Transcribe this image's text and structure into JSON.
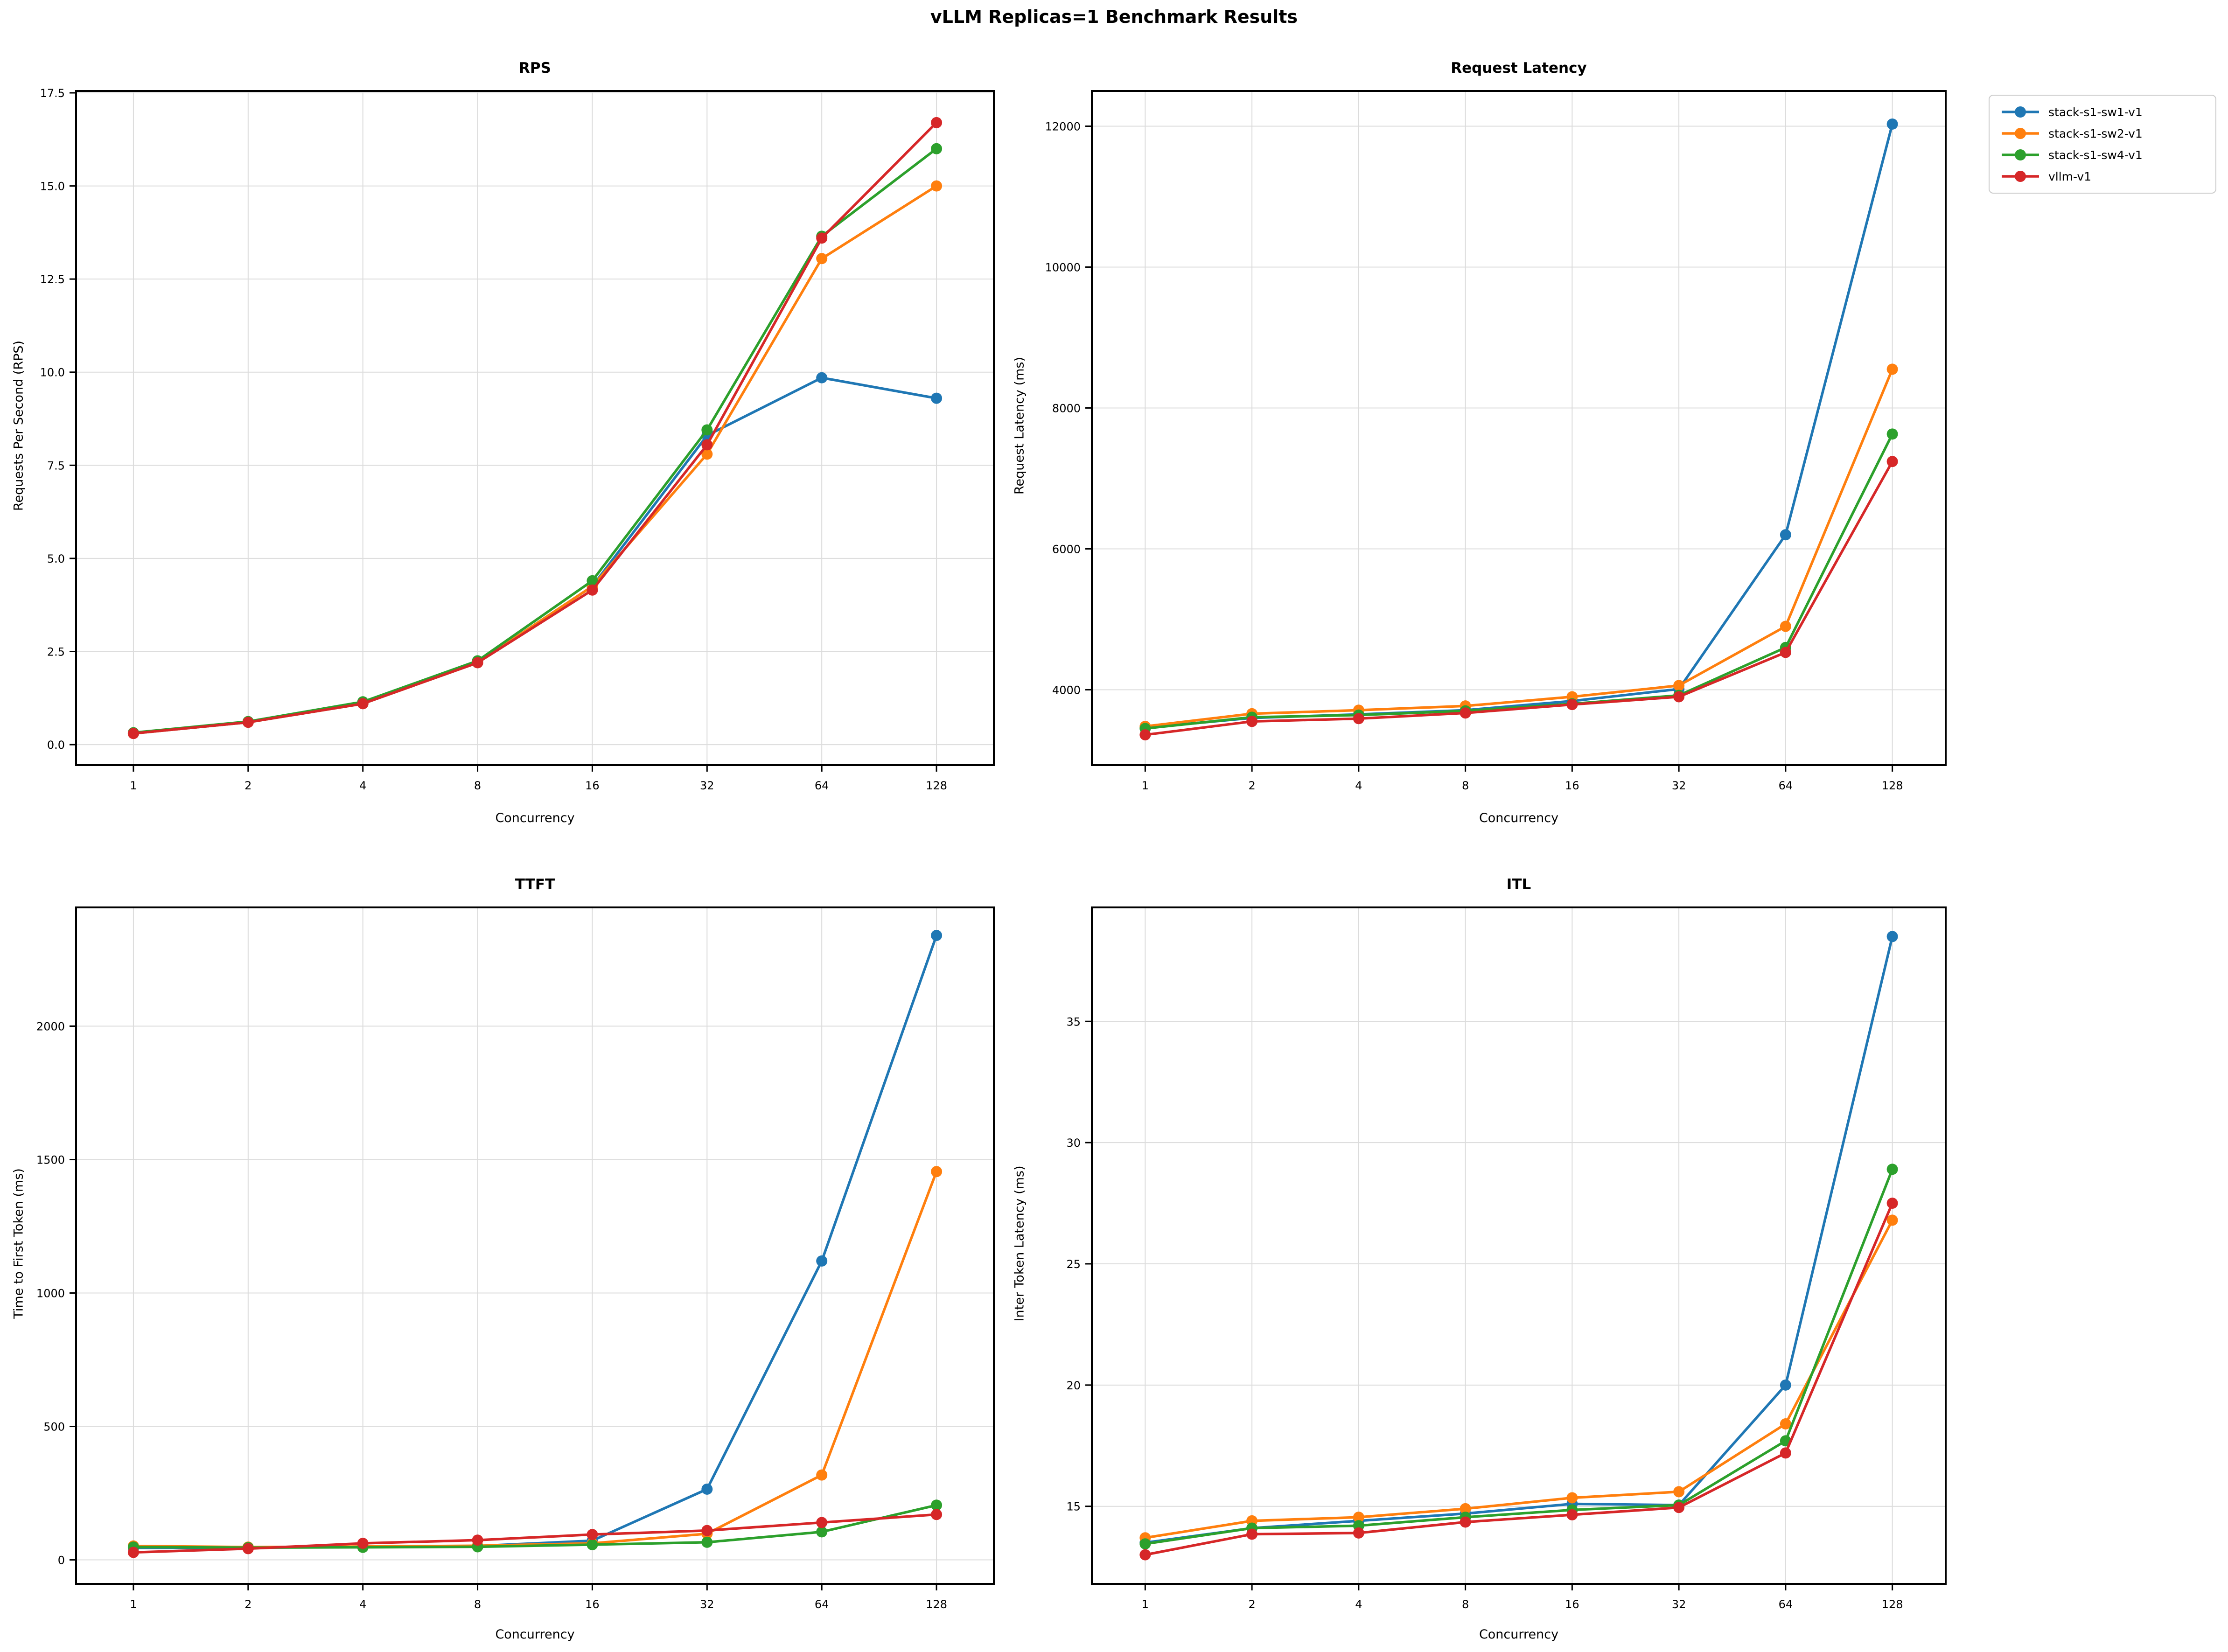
{
  "figure": {
    "suptitle": "vLLM Replicas=1 Benchmark Results"
  },
  "legend": {
    "items": [
      {
        "label": "stack-s1-sw1-v1",
        "color": "#1f77b4"
      },
      {
        "label": "stack-s1-sw2-v1",
        "color": "#ff7f0e"
      },
      {
        "label": "stack-s1-sw4-v1",
        "color": "#2ca02c"
      },
      {
        "label": "vllm-v1",
        "color": "#d62728"
      }
    ]
  },
  "chart_data": [
    {
      "type": "line",
      "title": "RPS",
      "xlabel": "Concurrency",
      "ylabel": "Requests Per Second (RPS)",
      "x": [
        1,
        2,
        4,
        8,
        16,
        32,
        64,
        128
      ],
      "xscale": "log2",
      "xlim_log2": [
        -0.5,
        7.5
      ],
      "ylim": [
        -0.55,
        17.55
      ],
      "yticks": [
        0.0,
        2.5,
        5.0,
        7.5,
        10.0,
        12.5,
        15.0,
        17.5
      ],
      "ytick_decimals": 1,
      "grid": true,
      "legend_position": "figure-upper-right",
      "series": [
        {
          "name": "stack-s1-sw1-v1",
          "color": "#1f77b4",
          "values": [
            0.3,
            0.6,
            1.1,
            2.2,
            4.25,
            8.3,
            9.85,
            9.3
          ]
        },
        {
          "name": "stack-s1-sw2-v1",
          "color": "#ff7f0e",
          "values": [
            0.3,
            0.6,
            1.1,
            2.2,
            4.25,
            7.8,
            13.05,
            15.0
          ]
        },
        {
          "name": "stack-s1-sw4-v1",
          "color": "#2ca02c",
          "values": [
            0.32,
            0.62,
            1.15,
            2.25,
            4.4,
            8.45,
            13.65,
            16.0
          ]
        },
        {
          "name": "vllm-v1",
          "color": "#d62728",
          "values": [
            0.3,
            0.6,
            1.1,
            2.2,
            4.15,
            8.05,
            13.6,
            16.7
          ]
        }
      ]
    },
    {
      "type": "line",
      "title": "Request Latency",
      "xlabel": "Concurrency",
      "ylabel": "Request Latency (ms)",
      "x": [
        1,
        2,
        4,
        8,
        16,
        32,
        64,
        128
      ],
      "xscale": "log2",
      "xlim_log2": [
        -0.5,
        7.5
      ],
      "ylim": [
        2930,
        12500
      ],
      "yticks": [
        4000,
        6000,
        8000,
        10000,
        12000
      ],
      "ytick_decimals": 0,
      "grid": true,
      "series": [
        {
          "name": "stack-s1-sw1-v1",
          "color": "#1f77b4",
          "values": [
            3460,
            3600,
            3650,
            3710,
            3840,
            4010,
            6200,
            12030
          ]
        },
        {
          "name": "stack-s1-sw2-v1",
          "color": "#ff7f0e",
          "values": [
            3480,
            3660,
            3710,
            3770,
            3900,
            4060,
            4900,
            8550
          ]
        },
        {
          "name": "stack-s1-sw4-v1",
          "color": "#2ca02c",
          "values": [
            3450,
            3610,
            3640,
            3700,
            3800,
            3920,
            4600,
            7630
          ]
        },
        {
          "name": "vllm-v1",
          "color": "#d62728",
          "values": [
            3360,
            3550,
            3590,
            3670,
            3790,
            3900,
            4530,
            7240
          ]
        }
      ]
    },
    {
      "type": "line",
      "title": "TTFT",
      "xlabel": "Concurrency",
      "ylabel": "Time to First Token (ms)",
      "x": [
        1,
        2,
        4,
        8,
        16,
        32,
        64,
        128
      ],
      "xscale": "log2",
      "xlim_log2": [
        -0.5,
        7.5
      ],
      "ylim": [
        -90,
        2445
      ],
      "yticks": [
        0,
        500,
        1000,
        1500,
        2000
      ],
      "ytick_decimals": 0,
      "grid": true,
      "series": [
        {
          "name": "stack-s1-sw1-v1",
          "color": "#1f77b4",
          "values": [
            45,
            45,
            50,
            52,
            72,
            265,
            1120,
            2340
          ]
        },
        {
          "name": "stack-s1-sw2-v1",
          "color": "#ff7f0e",
          "values": [
            52,
            48,
            50,
            53,
            62,
            98,
            318,
            1455
          ]
        },
        {
          "name": "stack-s1-sw4-v1",
          "color": "#2ca02c",
          "values": [
            48,
            46,
            47,
            49,
            57,
            66,
            105,
            205
          ]
        },
        {
          "name": "vllm-v1",
          "color": "#d62728",
          "values": [
            28,
            42,
            62,
            74,
            95,
            110,
            140,
            170
          ]
        }
      ]
    },
    {
      "type": "line",
      "title": "ITL",
      "xlabel": "Concurrency",
      "ylabel": "Inter Token Latency (ms)",
      "x": [
        1,
        2,
        4,
        8,
        16,
        32,
        64,
        128
      ],
      "xscale": "log2",
      "xlim_log2": [
        -0.5,
        7.5
      ],
      "ylim": [
        11.8,
        39.7
      ],
      "yticks": [
        15,
        20,
        25,
        30,
        35
      ],
      "ytick_decimals": 0,
      "grid": true,
      "series": [
        {
          "name": "stack-s1-sw1-v1",
          "color": "#1f77b4",
          "values": [
            13.5,
            14.1,
            14.4,
            14.7,
            15.1,
            15.05,
            20.0,
            38.5
          ]
        },
        {
          "name": "stack-s1-sw2-v1",
          "color": "#ff7f0e",
          "values": [
            13.7,
            14.4,
            14.55,
            14.9,
            15.35,
            15.6,
            18.4,
            26.8
          ]
        },
        {
          "name": "stack-s1-sw4-v1",
          "color": "#2ca02c",
          "values": [
            13.45,
            14.1,
            14.2,
            14.55,
            14.85,
            15.05,
            17.7,
            28.9
          ]
        },
        {
          "name": "vllm-v1",
          "color": "#d62728",
          "values": [
            13.0,
            13.85,
            13.9,
            14.35,
            14.65,
            14.95,
            17.2,
            27.5
          ]
        }
      ]
    }
  ]
}
